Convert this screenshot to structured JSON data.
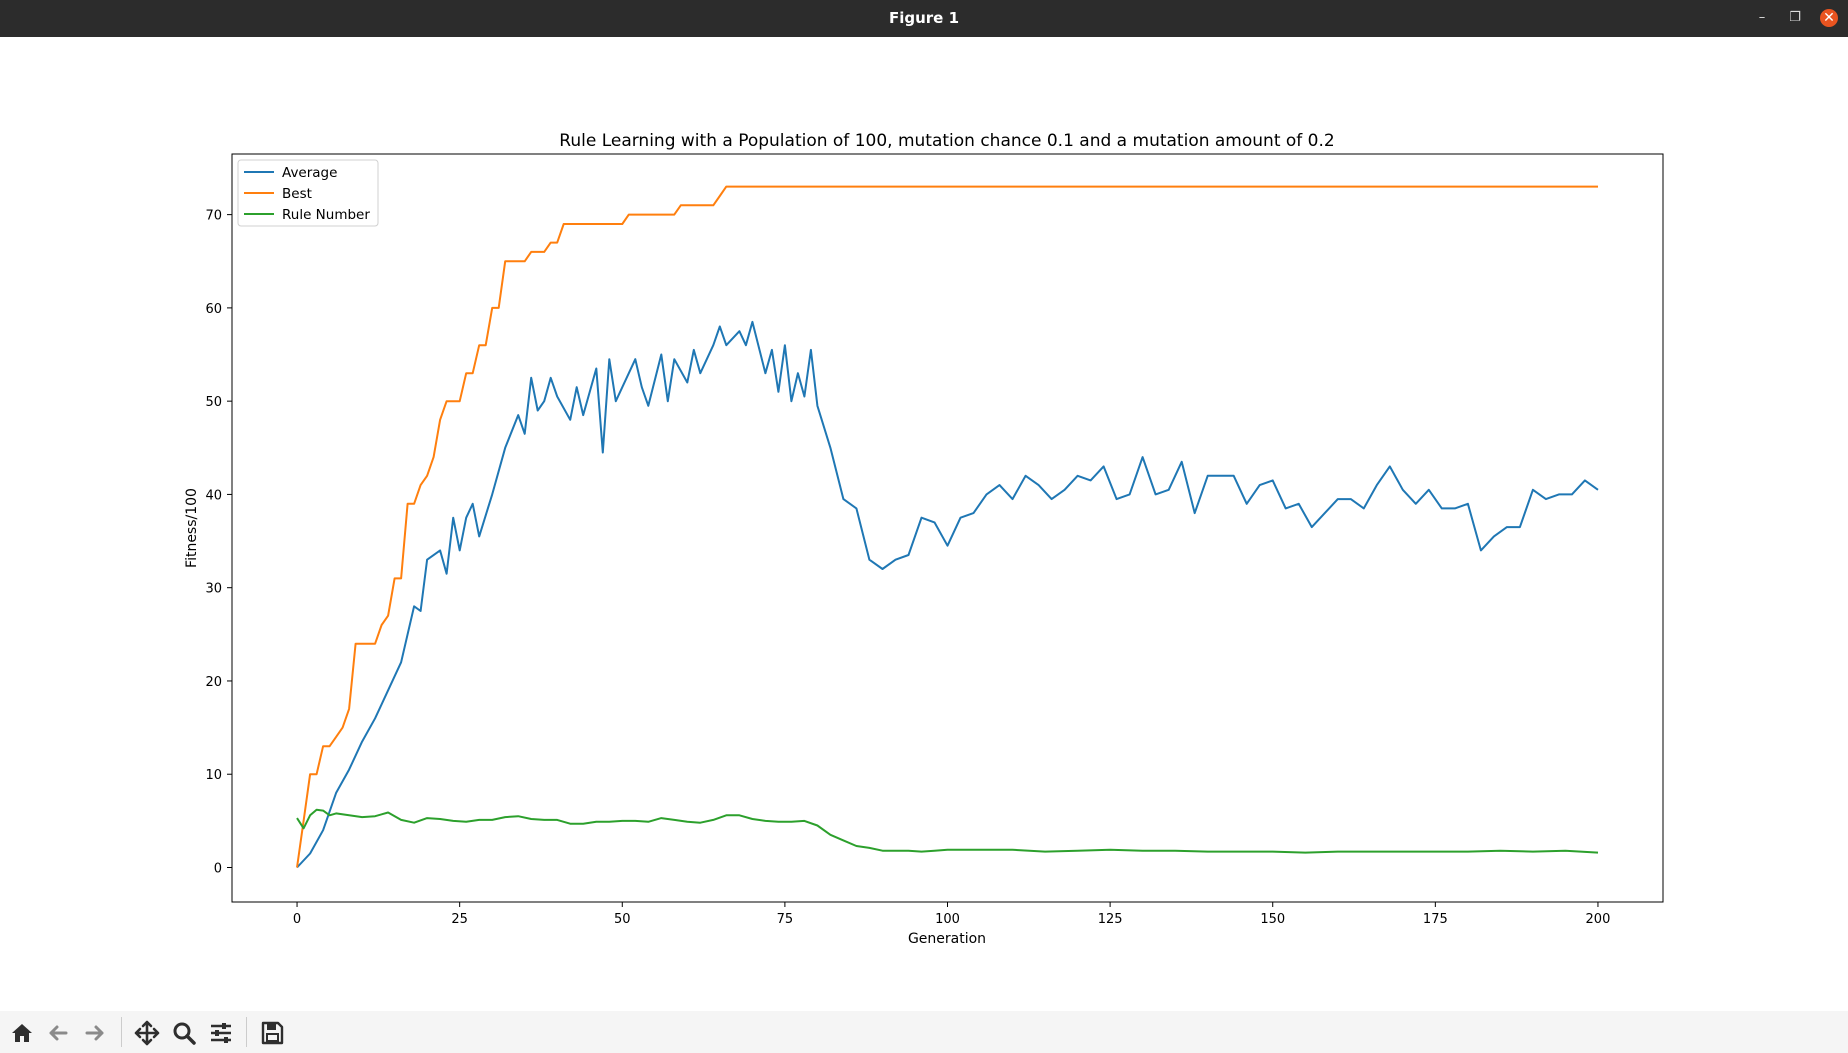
{
  "window": {
    "title": "Figure 1",
    "controls": [
      "minimize-icon",
      "restore-icon",
      "close-icon"
    ]
  },
  "toolbar": {
    "icons": [
      "home-icon",
      "back-arrow-icon",
      "forward-arrow-icon",
      "pan-icon",
      "zoom-icon",
      "configure-subplots-icon",
      "save-icon"
    ]
  },
  "colors": {
    "average": "#1f77b4",
    "best": "#ff7f0e",
    "rule_number": "#2ca02c",
    "titlebar": "#2c2c2c",
    "close": "#e95420"
  },
  "chart_data": {
    "type": "line",
    "title": "Rule Learning with a Population of 100, mutation chance 0.1 and a mutation amount of 0.2",
    "xlabel": "Generation",
    "ylabel": "Fitness/100",
    "xlim": [
      -10,
      210
    ],
    "ylim": [
      -3.7,
      76.5
    ],
    "xticks": [
      0,
      25,
      50,
      75,
      100,
      125,
      150,
      175,
      200
    ],
    "yticks": [
      0,
      10,
      20,
      30,
      40,
      50,
      60,
      70
    ],
    "grid": false,
    "legend": "top-left",
    "series": [
      {
        "name": "Average",
        "color": "#1f77b4",
        "x": [
          0,
          2,
          4,
          6,
          8,
          10,
          12,
          14,
          16,
          18,
          19,
          20,
          22,
          23,
          24,
          25,
          26,
          27,
          28,
          30,
          32,
          34,
          35,
          36,
          37,
          38,
          39,
          40,
          42,
          43,
          44,
          46,
          47,
          48,
          49,
          50,
          52,
          53,
          54,
          56,
          57,
          58,
          60,
          61,
          62,
          64,
          65,
          66,
          68,
          69,
          70,
          72,
          73,
          74,
          75,
          76,
          77,
          78,
          79,
          80,
          82,
          84,
          86,
          88,
          90,
          92,
          94,
          96,
          98,
          100,
          102,
          104,
          106,
          108,
          110,
          112,
          114,
          116,
          118,
          120,
          122,
          124,
          126,
          128,
          130,
          132,
          134,
          136,
          138,
          140,
          142,
          144,
          146,
          148,
          150,
          152,
          154,
          156,
          158,
          160,
          162,
          164,
          166,
          168,
          170,
          172,
          174,
          176,
          178,
          180,
          182,
          184,
          186,
          188,
          190,
          192,
          194,
          196,
          198,
          200
        ],
        "y": [
          0,
          1.5,
          4,
          8,
          10.5,
          13.5,
          16,
          19,
          22,
          28,
          27.5,
          33,
          34,
          31.5,
          37.5,
          34,
          37.5,
          39,
          35.5,
          40,
          45,
          48.5,
          46.5,
          52.5,
          49,
          50,
          52.5,
          50.5,
          48,
          51.5,
          48.5,
          53.5,
          44.5,
          54.5,
          50,
          51.5,
          54.5,
          51.5,
          49.5,
          55,
          50,
          54.5,
          52,
          55.5,
          53,
          56,
          58,
          56,
          57.5,
          56,
          58.5,
          53,
          55.5,
          51,
          56,
          50,
          53,
          50.5,
          55.5,
          49.5,
          45,
          39.5,
          38.5,
          33,
          32,
          33,
          33.5,
          37.5,
          37,
          34.5,
          37.5,
          38,
          40,
          41,
          39.5,
          42,
          41,
          39.5,
          40.5,
          42,
          41.5,
          43,
          39.5,
          40,
          44,
          40,
          40.5,
          43.5,
          38,
          42,
          42,
          42,
          39,
          41,
          41.5,
          38.5,
          39,
          36.5,
          38,
          39.5,
          39.5,
          38.5,
          41,
          43,
          40.5,
          39,
          40.5,
          38.5,
          38.5,
          39,
          34,
          35.5,
          36.5,
          36.5,
          40.5,
          39.5,
          40,
          40,
          41.5,
          40.5
        ]
      },
      {
        "name": "Best",
        "color": "#ff7f0e",
        "x": [
          0,
          1,
          2,
          3,
          4,
          5,
          6,
          7,
          8,
          9,
          10,
          12,
          13,
          14,
          15,
          16,
          17,
          18,
          19,
          20,
          21,
          22,
          23,
          24,
          25,
          26,
          27,
          28,
          29,
          30,
          31,
          32,
          35,
          36,
          38,
          39,
          40,
          41,
          50,
          51,
          58,
          59,
          64,
          65,
          66,
          200
        ],
        "y": [
          0,
          5,
          10,
          10,
          13,
          13,
          14,
          15,
          17,
          24,
          24,
          24,
          26,
          27,
          31,
          31,
          39,
          39,
          41,
          42,
          44,
          48,
          50,
          50,
          50,
          53,
          53,
          56,
          56,
          60,
          60,
          65,
          65,
          66,
          66,
          67,
          67,
          69,
          69,
          70,
          70,
          71,
          71,
          72,
          73,
          73
        ]
      },
      {
        "name": "Rule Number",
        "color": "#2ca02c",
        "x": [
          0,
          1,
          2,
          3,
          4,
          5,
          6,
          8,
          10,
          12,
          14,
          16,
          18,
          20,
          22,
          24,
          26,
          28,
          30,
          32,
          34,
          36,
          38,
          40,
          42,
          44,
          46,
          48,
          50,
          52,
          54,
          56,
          58,
          60,
          62,
          64,
          66,
          68,
          70,
          72,
          74,
          76,
          78,
          80,
          82,
          84,
          86,
          88,
          90,
          92,
          94,
          96,
          98,
          100,
          105,
          110,
          115,
          120,
          125,
          130,
          135,
          140,
          145,
          150,
          155,
          160,
          165,
          170,
          175,
          180,
          185,
          190,
          195,
          200
        ],
        "y": [
          5.3,
          4.2,
          5.6,
          6.2,
          6.1,
          5.6,
          5.8,
          5.6,
          5.4,
          5.5,
          5.9,
          5.1,
          4.8,
          5.3,
          5.2,
          5.0,
          4.9,
          5.1,
          5.1,
          5.4,
          5.5,
          5.2,
          5.1,
          5.1,
          4.7,
          4.7,
          4.9,
          4.9,
          5.0,
          5.0,
          4.9,
          5.3,
          5.1,
          4.9,
          4.8,
          5.1,
          5.6,
          5.6,
          5.2,
          5.0,
          4.9,
          4.9,
          5.0,
          4.5,
          3.5,
          2.9,
          2.3,
          2.1,
          1.8,
          1.8,
          1.8,
          1.7,
          1.8,
          1.9,
          1.9,
          1.9,
          1.7,
          1.8,
          1.9,
          1.8,
          1.8,
          1.7,
          1.7,
          1.7,
          1.6,
          1.7,
          1.7,
          1.7,
          1.7,
          1.7,
          1.8,
          1.7,
          1.8,
          1.6
        ]
      }
    ]
  }
}
